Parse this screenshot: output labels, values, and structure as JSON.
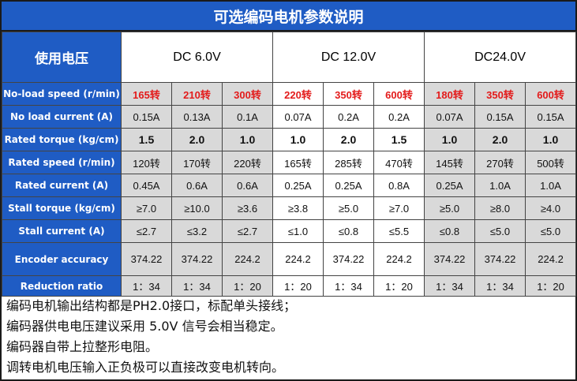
{
  "title": "可选编码电机参数说明",
  "voltage_label": "使用电压",
  "voltages": [
    "DC 6.0V",
    "DC 12.0V",
    "DC24.0V"
  ],
  "rows": [
    {
      "label": "No-load speed (r/min)",
      "values": [
        "165转",
        "210转",
        "300转",
        "220转",
        "350转",
        "600转",
        "180转",
        "350转",
        "600转"
      ]
    },
    {
      "label": "No load current (A)",
      "values": [
        "0.15A",
        "0.13A",
        "0.1A",
        "0.07A",
        "0.2A",
        "0.2A",
        "0.07A",
        "0.15A",
        "0.15A"
      ]
    },
    {
      "label": "Rated torque (kg/cm)",
      "values": [
        "1.5",
        "2.0",
        "1.0",
        "1.0",
        "2.0",
        "1.5",
        "1.0",
        "2.0",
        "1.0"
      ]
    },
    {
      "label": "Rated speed (r/min)",
      "values": [
        "120转",
        "170转",
        "220转",
        "165转",
        "285转",
        "470转",
        "145转",
        "270转",
        "500转"
      ]
    },
    {
      "label": "Rated current (A)",
      "values": [
        "0.45A",
        "0.6A",
        "0.6A",
        "0.25A",
        "0.25A",
        "0.8A",
        "0.25A",
        "1.0A",
        "1.0A"
      ]
    },
    {
      "label": "Stall torque (kg/cm)",
      "values": [
        "≥7.0",
        "≥10.0",
        "≥3.6",
        "≥3.8",
        "≥5.0",
        "≥7.0",
        "≥5.0",
        "≥8.0",
        "≥4.0"
      ]
    },
    {
      "label": "Stall current (A)",
      "values": [
        "≤2.7",
        "≤3.2",
        "≤2.7",
        "≤1.0",
        "≤0.8",
        "≤5.5",
        "≤0.8",
        "≤5.0",
        "≤5.0"
      ]
    },
    {
      "label": "Encoder accuracy",
      "values": [
        "374.22",
        "374.22",
        "224.2",
        "224.2",
        "374.22",
        "224.2",
        "374.22",
        "374.22",
        "224.2"
      ]
    },
    {
      "label": "Reduction ratio",
      "values": [
        "1：34",
        "1：34",
        "1：20",
        "1：20",
        "1：34",
        "1：20",
        "1：34",
        "1：34",
        "1：20"
      ]
    }
  ],
  "notes": [
    "编码电机输出结构都是PH2.0接口，标配单头接线；",
    "编码器供电电压建议采用 5.0V 信号会相当稳定。",
    "编码器自带上拉整形电阻。",
    "调转电机电压输入正负极可以直接改变电机转向。"
  ],
  "colors": {
    "header_blue": "#1f5cc4",
    "highlight_red": "#e31b1b",
    "gray_cell": "#d9d9d9"
  }
}
